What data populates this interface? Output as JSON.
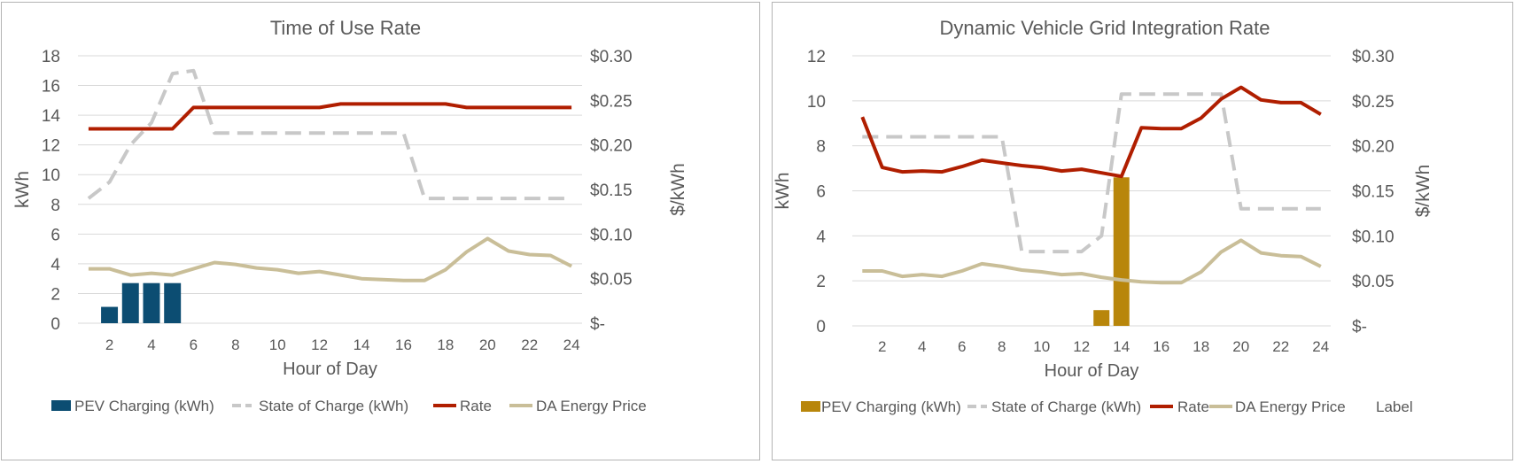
{
  "colors": {
    "left_bar": "#0c4d72",
    "right_bar": "#b8860b",
    "soc": "#c8c8c8",
    "rate": "#b01e00",
    "da": "#c9be98",
    "grid": "#d9d9d9",
    "text": "#595959"
  },
  "chart_data": [
    {
      "type": "bar",
      "title": "Time of Use Rate",
      "xlabel": "Hour of Day",
      "ylabel": "kWh",
      "y2label": "$/kWh",
      "ylim": [
        0,
        18
      ],
      "y2lim": [
        0,
        0.3
      ],
      "x": [
        1,
        2,
        3,
        4,
        5,
        6,
        7,
        8,
        9,
        10,
        11,
        12,
        13,
        14,
        15,
        16,
        17,
        18,
        19,
        20,
        21,
        22,
        23,
        24
      ],
      "x_ticks": [
        "2",
        "4",
        "6",
        "8",
        "10",
        "12",
        "14",
        "16",
        "18",
        "20",
        "22",
        "24"
      ],
      "y_ticks": [
        "0",
        "2",
        "4",
        "6",
        "8",
        "10",
        "12",
        "14",
        "16",
        "18"
      ],
      "y2_ticks": [
        "$-",
        "$0.05",
        "$0.10",
        "$0.15",
        "$0.20",
        "$0.25",
        "$0.30"
      ],
      "grid": true,
      "legend_position": "bottom",
      "legend": [
        "PEV Charging (kWh)",
        "State of Charge (kWh)",
        "Rate",
        "DA Energy Price"
      ],
      "series": [
        {
          "name": "PEV Charging (kWh)",
          "type": "bar",
          "axis": "left",
          "values": [
            0,
            1.1,
            2.7,
            2.7,
            2.7,
            0,
            0,
            0,
            0,
            0,
            0,
            0,
            0,
            0,
            0,
            0,
            0,
            0,
            0,
            0,
            0,
            0,
            0,
            0
          ]
        },
        {
          "name": "State of Charge (kWh)",
          "type": "line",
          "axis": "left",
          "dashed": true,
          "values": [
            8.4,
            9.5,
            12,
            13.5,
            16.8,
            17,
            12.8,
            12.8,
            12.8,
            12.8,
            12.8,
            12.8,
            12.8,
            12.8,
            12.8,
            12.8,
            8.4,
            8.4,
            8.4,
            8.4,
            8.4,
            8.4,
            8.4,
            8.4
          ]
        },
        {
          "name": "Rate",
          "type": "line",
          "axis": "right",
          "values": [
            0.218,
            0.218,
            0.218,
            0.218,
            0.218,
            0.242,
            0.242,
            0.242,
            0.242,
            0.242,
            0.242,
            0.242,
            0.246,
            0.246,
            0.246,
            0.246,
            0.246,
            0.246,
            0.242,
            0.242,
            0.242,
            0.242,
            0.242,
            0.242
          ]
        },
        {
          "name": "DA Energy Price",
          "type": "line",
          "axis": "right",
          "values": [
            0.061,
            0.061,
            0.054,
            0.056,
            0.054,
            0.061,
            0.068,
            0.066,
            0.062,
            0.06,
            0.056,
            0.058,
            0.054,
            0.05,
            0.049,
            0.048,
            0.048,
            0.06,
            0.08,
            0.095,
            0.081,
            0.077,
            0.076,
            0.064
          ]
        }
      ]
    },
    {
      "type": "bar",
      "title": "Dynamic Vehicle Grid Integration Rate",
      "xlabel": "Hour of Day",
      "ylabel": "kWh",
      "y2label": "$/kWh",
      "ylim": [
        0,
        12
      ],
      "y2lim": [
        0,
        0.3
      ],
      "x": [
        1,
        2,
        3,
        4,
        5,
        6,
        7,
        8,
        9,
        10,
        11,
        12,
        13,
        14,
        15,
        16,
        17,
        18,
        19,
        20,
        21,
        22,
        23,
        24
      ],
      "x_ticks": [
        "2",
        "4",
        "6",
        "8",
        "10",
        "12",
        "14",
        "16",
        "18",
        "20",
        "22",
        "24"
      ],
      "y_ticks": [
        "0",
        "2",
        "4",
        "6",
        "8",
        "10",
        "12"
      ],
      "y2_ticks": [
        "$-",
        "$0.05",
        "$0.10",
        "$0.15",
        "$0.20",
        "$0.25",
        "$0.30"
      ],
      "grid": true,
      "legend_position": "bottom",
      "legend": [
        "PEV Charging (kWh)",
        "State of Charge (kWh)",
        "Rate",
        "DA Energy Price",
        "Label"
      ],
      "series": [
        {
          "name": "PEV Charging (kWh)",
          "type": "bar",
          "axis": "left",
          "values": [
            0,
            0,
            0,
            0,
            0,
            0,
            0,
            0,
            0,
            0,
            0,
            0,
            0.7,
            6.6,
            0,
            0,
            0,
            0,
            0,
            0,
            0,
            0,
            0,
            0
          ]
        },
        {
          "name": "State of Charge (kWh)",
          "type": "line",
          "axis": "left",
          "dashed": true,
          "values": [
            8.4,
            8.4,
            8.4,
            8.4,
            8.4,
            8.4,
            8.4,
            8.4,
            3.3,
            3.3,
            3.3,
            3.3,
            4,
            10.3,
            10.3,
            10.3,
            10.3,
            10.3,
            10.3,
            5.2,
            5.2,
            5.2,
            5.2,
            5.2
          ]
        },
        {
          "name": "Rate",
          "type": "line",
          "axis": "right",
          "values": [
            0.232,
            0.176,
            0.171,
            0.172,
            0.171,
            0.177,
            0.184,
            0.181,
            0.178,
            0.176,
            0.172,
            0.174,
            0.17,
            0.166,
            0.22,
            0.219,
            0.219,
            0.231,
            0.252,
            0.265,
            0.251,
            0.248,
            0.248,
            0.235
          ]
        },
        {
          "name": "DA Energy Price",
          "type": "line",
          "axis": "right",
          "values": [
            0.061,
            0.061,
            0.055,
            0.057,
            0.055,
            0.061,
            0.069,
            0.066,
            0.062,
            0.06,
            0.057,
            0.058,
            0.054,
            0.051,
            0.049,
            0.048,
            0.048,
            0.06,
            0.082,
            0.095,
            0.081,
            0.078,
            0.077,
            0.066
          ]
        }
      ]
    }
  ]
}
